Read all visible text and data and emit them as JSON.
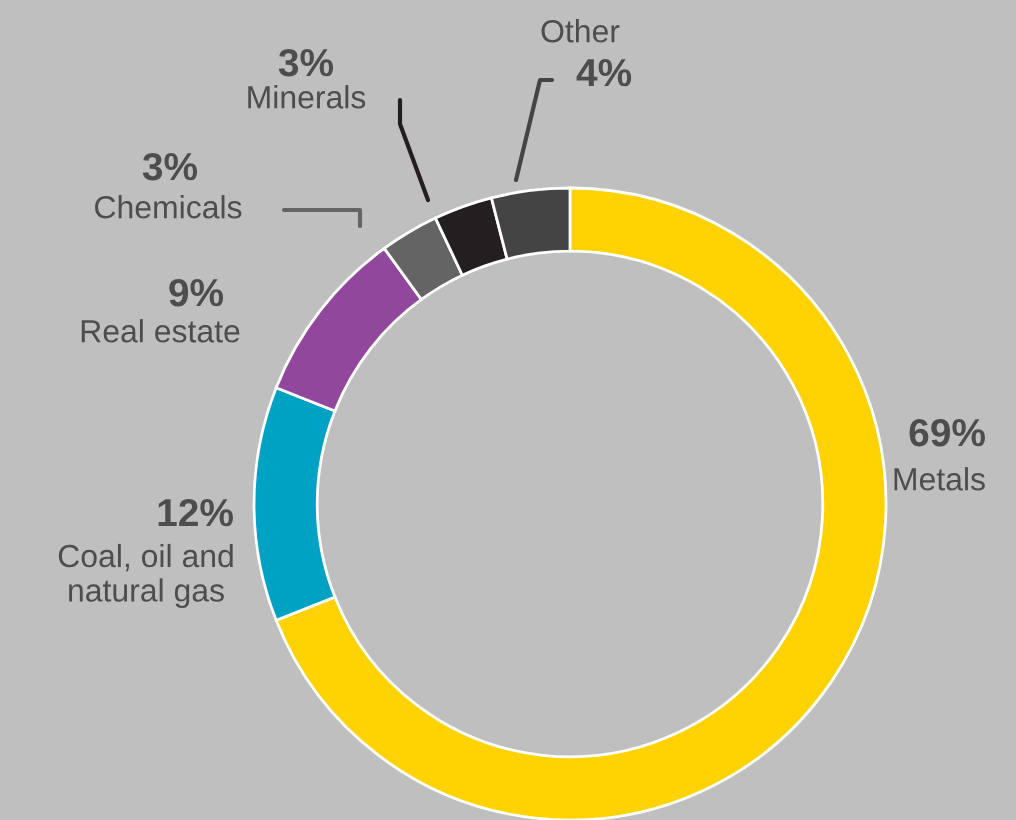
{
  "chart_data": {
    "type": "donut",
    "categories": [
      "Metals",
      "Coal, oil and\nnatural gas",
      "Real estate",
      "Chemicals",
      "Minerals",
      "Other"
    ],
    "values": [
      69,
      12,
      9,
      3,
      3,
      4
    ],
    "value_labels": [
      "69%",
      "12%",
      "9%",
      "3%",
      "3%",
      "4%"
    ],
    "colors": [
      "#ffd200",
      "#00a2c4",
      "#91479c",
      "#646464",
      "#231f20",
      "#444444"
    ]
  }
}
